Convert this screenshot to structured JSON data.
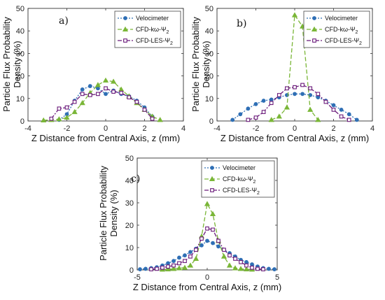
{
  "chart_data": [
    {
      "type": "line",
      "panel_label": "a)",
      "xlabel": "Z Distance from Central Axis, z (mm)",
      "ylabel": "Particle Flux Probability Density (%)",
      "xlim": [
        -4,
        4
      ],
      "ylim": [
        0,
        50
      ],
      "xticks": [
        "-4",
        "-2",
        "0",
        "2",
        "4"
      ],
      "yticks": [
        "0",
        "10",
        "20",
        "30",
        "40",
        "50"
      ],
      "legend_position": "top-right",
      "series": [
        {
          "name": "Velocimeter",
          "color": "#2f6fb5",
          "marker": "circle",
          "dash": "2,2",
          "x": [
            -2.4,
            -2.0,
            -1.6,
            -1.2,
            -0.8,
            -0.4,
            0.0,
            0.4,
            0.8,
            1.2,
            1.6,
            2.0,
            2.4
          ],
          "y": [
            0.5,
            3.0,
            9.0,
            14.0,
            15.5,
            14.5,
            12.0,
            13.5,
            12.0,
            11.0,
            9.0,
            6.0,
            2.0
          ]
        },
        {
          "name": "CFD-kω-Ψ2",
          "color": "#7ab637",
          "marker": "triangle",
          "dash": "6,3",
          "x": [
            -3.2,
            -2.8,
            -2.4,
            -2.0,
            -1.6,
            -1.2,
            -0.8,
            -0.4,
            0.0,
            0.4,
            0.8,
            1.2,
            1.6,
            2.0,
            2.4,
            2.8
          ],
          "y": [
            0.3,
            0.5,
            0.8,
            1.5,
            4.0,
            8.0,
            12.5,
            16.0,
            18.0,
            17.5,
            14.0,
            11.0,
            8.0,
            5.0,
            2.0,
            0.5
          ]
        },
        {
          "name": "CFD-LES-Ψ2",
          "color": "#6a1a7a",
          "marker": "square",
          "dash": "6,2,2,2",
          "x": [
            -2.8,
            -2.4,
            -2.0,
            -1.6,
            -1.2,
            -0.8,
            -0.4,
            0.0,
            0.4,
            0.8,
            1.2,
            1.6,
            2.0,
            2.4
          ],
          "y": [
            1.0,
            5.5,
            6.0,
            8.5,
            12.0,
            11.5,
            12.0,
            14.5,
            13.0,
            12.5,
            10.5,
            8.5,
            5.0,
            1.0
          ]
        }
      ]
    },
    {
      "type": "line",
      "panel_label": "b)",
      "xlabel": "Z Distance from Central Axis, z (mm)",
      "ylabel": "Particle Flux Probability Density (%)",
      "xlim": [
        -4,
        4
      ],
      "ylim": [
        0,
        50
      ],
      "xticks": [
        "-4",
        "-2",
        "0",
        "2",
        "4"
      ],
      "yticks": [
        "0",
        "10",
        "20",
        "30",
        "40",
        "50"
      ],
      "legend_position": "top-right",
      "series": [
        {
          "name": "Velocimeter",
          "color": "#2f6fb5",
          "marker": "circle",
          "dash": "2,2",
          "x": [
            -3.2,
            -2.8,
            -2.4,
            -2.0,
            -1.6,
            -1.2,
            -0.8,
            -0.4,
            0.0,
            0.4,
            0.8,
            1.2,
            1.6,
            2.0,
            2.4,
            2.8,
            3.2
          ],
          "y": [
            0.5,
            3.0,
            5.5,
            7.5,
            9.0,
            9.5,
            10.5,
            11.5,
            12.0,
            12.0,
            11.5,
            10.5,
            9.0,
            7.0,
            5.0,
            3.0,
            0.5
          ]
        },
        {
          "name": "CFD-kω-Ψ2",
          "color": "#7ab637",
          "marker": "triangle",
          "dash": "6,3",
          "x": [
            -1.2,
            -0.8,
            -0.4,
            0.0,
            0.4,
            0.8,
            1.2
          ],
          "y": [
            0.5,
            2.0,
            6.0,
            47.0,
            42.0,
            5.0,
            0.5
          ]
        },
        {
          "name": "CFD-LES-Ψ2",
          "color": "#6a1a7a",
          "marker": "square",
          "dash": "6,2,2,2",
          "x": [
            -2.4,
            -2.0,
            -1.6,
            -1.2,
            -0.8,
            -0.4,
            0.0,
            0.4,
            0.8,
            1.2,
            1.6,
            2.0,
            2.4,
            2.8
          ],
          "y": [
            0.5,
            1.5,
            4.0,
            8.0,
            11.5,
            14.5,
            15.0,
            16.0,
            14.5,
            12.0,
            8.5,
            5.0,
            2.0,
            0.5
          ]
        }
      ]
    },
    {
      "type": "line",
      "panel_label": "c)",
      "xlabel": "Z Distance from Central Axis, z (mm)",
      "ylabel": "Particle Flux Probability Density (%)",
      "xlim": [
        -5,
        5
      ],
      "ylim": [
        0,
        50
      ],
      "xticks": [
        "-5",
        "0",
        "5"
      ],
      "yticks": [
        "0",
        "10",
        "20",
        "30",
        "40",
        "50"
      ],
      "legend_position": "top-right",
      "series": [
        {
          "name": "Velocimeter",
          "color": "#2f6fb5",
          "marker": "circle",
          "dash": "2,2",
          "x": [
            -4.8,
            -4.4,
            -4.0,
            -3.6,
            -3.2,
            -2.8,
            -2.4,
            -2.0,
            -1.6,
            -1.2,
            -0.8,
            -0.4,
            0.0,
            0.4,
            0.8,
            1.2,
            1.6,
            2.0,
            2.4,
            2.8,
            3.2,
            3.6,
            4.0,
            4.4,
            4.8
          ],
          "y": [
            0.3,
            0.5,
            0.8,
            1.2,
            2.0,
            3.0,
            4.0,
            5.5,
            6.5,
            8.0,
            9.5,
            11.0,
            13.0,
            12.0,
            10.5,
            9.0,
            7.5,
            6.0,
            4.5,
            3.5,
            2.5,
            1.5,
            0.8,
            0.5,
            0.3
          ]
        },
        {
          "name": "CFD-kω-Ψ2",
          "color": "#7ab637",
          "marker": "triangle",
          "dash": "6,3",
          "x": [
            -3.2,
            -2.8,
            -2.4,
            -2.0,
            -1.6,
            -1.2,
            -0.8,
            -0.4,
            0.0,
            0.4,
            0.8,
            1.2,
            1.6,
            2.0,
            2.4,
            2.8,
            3.2
          ],
          "y": [
            0.2,
            0.3,
            0.5,
            0.8,
            1.0,
            2.0,
            5.0,
            15.0,
            29.5,
            25.0,
            13.0,
            6.0,
            2.0,
            0.8,
            0.5,
            0.3,
            0.2
          ]
        },
        {
          "name": "CFD-LES-Ψ2",
          "color": "#6a1a7a",
          "marker": "square",
          "dash": "6,2,2,2",
          "x": [
            -4.0,
            -3.6,
            -3.2,
            -2.8,
            -2.4,
            -2.0,
            -1.6,
            -1.2,
            -0.8,
            -0.4,
            0.0,
            0.4,
            0.8,
            1.2,
            1.6,
            2.0,
            2.4,
            2.8,
            3.2,
            3.6,
            4.0
          ],
          "y": [
            0.3,
            0.5,
            1.0,
            1.5,
            2.0,
            3.0,
            4.0,
            6.0,
            9.0,
            14.0,
            18.5,
            18.0,
            13.0,
            9.0,
            6.5,
            5.0,
            3.5,
            2.0,
            1.0,
            0.5,
            0.3
          ]
        }
      ]
    }
  ]
}
